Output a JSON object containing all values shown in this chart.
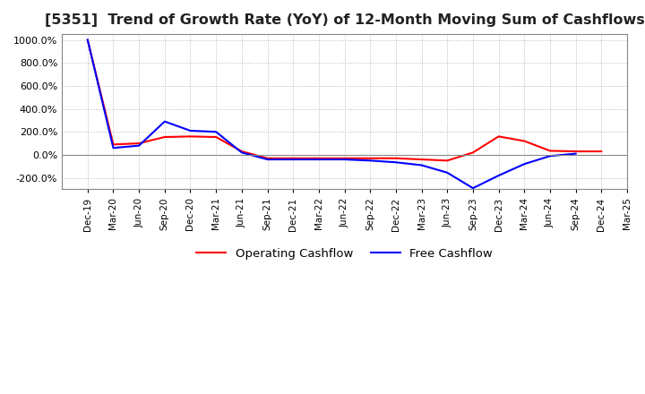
{
  "title": "[5351]  Trend of Growth Rate (YoY) of 12-Month Moving Sum of Cashflows",
  "title_fontsize": 11.5,
  "ylim": [
    -300,
    1050
  ],
  "yticks": [
    -200,
    0,
    200,
    400,
    600,
    800,
    1000
  ],
  "background_color": "#ffffff",
  "grid_color": "#aaaaaa",
  "legend_entries": [
    "Operating Cashflow",
    "Free Cashflow"
  ],
  "legend_colors": [
    "#ff0000",
    "#0000ff"
  ],
  "x_labels": [
    "Dec-19",
    "Mar-20",
    "Jun-20",
    "Sep-20",
    "Dec-20",
    "Mar-21",
    "Jun-21",
    "Sep-21",
    "Dec-21",
    "Mar-22",
    "Jun-22",
    "Sep-22",
    "Dec-22",
    "Mar-23",
    "Jun-23",
    "Sep-23",
    "Dec-23",
    "Mar-24",
    "Jun-24",
    "Sep-24",
    "Dec-24",
    "Mar-25"
  ],
  "operating_cashflow": [
    1000,
    90,
    100,
    155,
    160,
    155,
    30,
    -30,
    -30,
    -30,
    -30,
    -30,
    -30,
    -40,
    -50,
    20,
    160,
    120,
    35,
    30,
    30,
    null
  ],
  "free_cashflow": [
    1000,
    60,
    80,
    290,
    210,
    200,
    20,
    -40,
    -40,
    -40,
    -40,
    -50,
    -65,
    -90,
    -155,
    -290,
    -180,
    -80,
    -10,
    10,
    null,
    null
  ]
}
